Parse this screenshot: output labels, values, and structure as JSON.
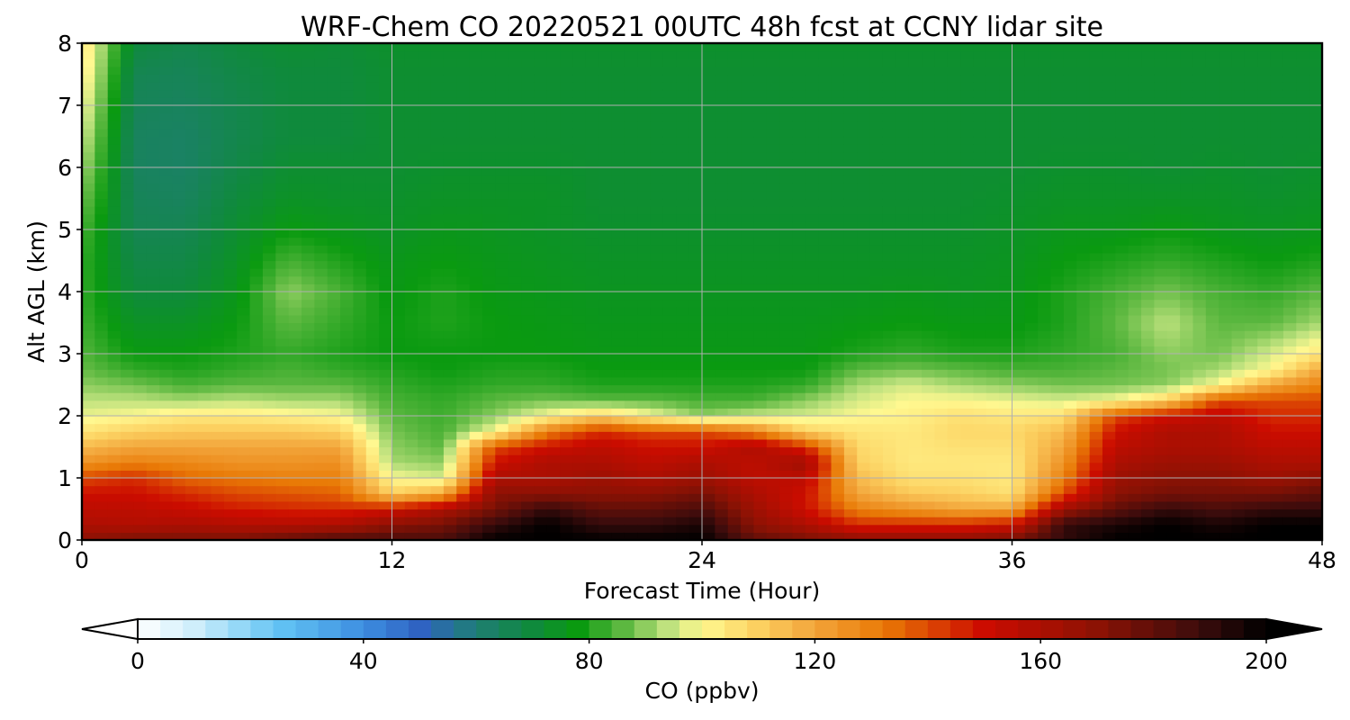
{
  "chart_data": {
    "type": "heatmap",
    "title": "WRF-Chem CO  20220521 00UTC 48h fcst at CCNY lidar site",
    "xlabel": "Forecast Time (Hour)",
    "ylabel": "Alt AGL (km)",
    "xlim": [
      0,
      48
    ],
    "ylim": [
      0,
      8
    ],
    "xticks": [
      0,
      12,
      24,
      36,
      48
    ],
    "yticks": [
      0,
      1,
      2,
      3,
      4,
      5,
      6,
      7,
      8
    ],
    "grid": true,
    "x_hours": [
      0,
      2,
      4,
      6,
      8,
      10,
      12,
      14,
      16,
      18,
      20,
      22,
      24,
      26,
      28,
      30,
      32,
      34,
      36,
      38,
      40,
      42,
      44,
      46,
      48
    ],
    "z_km": [
      0,
      0.25,
      0.5,
      0.75,
      1,
      1.25,
      1.5,
      1.75,
      2,
      2.25,
      2.5,
      2.75,
      3,
      3.5,
      4,
      4.5,
      5,
      5.5,
      6,
      6.5,
      7,
      7.5,
      8
    ],
    "co_ppbv_by_hour": [
      [
        170,
        160,
        155,
        150,
        140,
        125,
        115,
        105,
        98,
        94,
        90,
        87,
        85,
        83,
        82,
        82,
        84,
        88,
        92,
        96,
        100,
        104,
        106
      ],
      [
        175,
        158,
        155,
        150,
        145,
        130,
        120,
        110,
        100,
        94,
        88,
        82,
        78,
        74,
        70,
        68,
        66,
        65,
        64,
        64,
        65,
        66,
        70
      ],
      [
        175,
        160,
        152,
        145,
        135,
        128,
        120,
        112,
        104,
        92,
        84,
        80,
        78,
        74,
        70,
        68,
        66,
        64,
        63,
        63,
        64,
        65,
        67
      ],
      [
        175,
        158,
        148,
        140,
        132,
        125,
        120,
        112,
        104,
        94,
        86,
        82,
        80,
        78,
        76,
        74,
        72,
        70,
        68,
        67,
        67,
        68,
        70
      ],
      [
        180,
        158,
        146,
        138,
        130,
        125,
        120,
        112,
        102,
        92,
        86,
        84,
        82,
        86,
        90,
        84,
        78,
        74,
        72,
        70,
        70,
        70,
        72
      ],
      [
        185,
        160,
        145,
        136,
        130,
        126,
        120,
        110,
        100,
        92,
        86,
        82,
        80,
        82,
        84,
        80,
        76,
        73,
        72,
        70,
        70,
        70,
        71
      ],
      [
        185,
        170,
        150,
        110,
        100,
        92,
        90,
        88,
        86,
        84,
        82,
        80,
        78,
        78,
        77,
        76,
        74,
        73,
        72,
        72,
        72,
        72,
        73
      ],
      [
        185,
        175,
        160,
        120,
        96,
        90,
        86,
        84,
        83,
        82,
        80,
        78,
        78,
        80,
        80,
        78,
        76,
        74,
        73,
        72,
        72,
        72,
        73
      ],
      [
        200,
        190,
        175,
        170,
        160,
        150,
        140,
        100,
        90,
        86,
        82,
        80,
        78,
        78,
        77,
        76,
        75,
        74,
        73,
        72,
        72,
        72,
        73
      ],
      [
        200,
        200,
        190,
        170,
        160,
        160,
        150,
        130,
        100,
        88,
        82,
        80,
        78,
        77,
        76,
        75,
        74,
        74,
        73,
        72,
        72,
        72,
        73
      ],
      [
        200,
        190,
        180,
        170,
        165,
        160,
        155,
        145,
        110,
        86,
        80,
        78,
        77,
        76,
        75,
        74,
        73,
        72,
        72,
        72,
        72,
        72,
        73
      ],
      [
        200,
        190,
        180,
        170,
        160,
        155,
        150,
        140,
        100,
        86,
        80,
        78,
        77,
        76,
        75,
        74,
        73,
        72,
        72,
        72,
        72,
        72,
        73
      ],
      [
        200,
        195,
        185,
        175,
        165,
        160,
        150,
        140,
        90,
        84,
        80,
        78,
        77,
        76,
        75,
        74,
        73,
        72,
        72,
        72,
        72,
        72,
        73
      ],
      [
        180,
        170,
        165,
        160,
        155,
        155,
        160,
        130,
        95,
        84,
        80,
        78,
        77,
        76,
        75,
        74,
        73,
        72,
        72,
        72,
        72,
        72,
        73
      ],
      [
        175,
        160,
        150,
        150,
        155,
        165,
        145,
        110,
        96,
        90,
        82,
        78,
        77,
        76,
        75,
        74,
        73,
        72,
        72,
        72,
        72,
        72,
        73
      ],
      [
        170,
        145,
        130,
        120,
        115,
        110,
        108,
        105,
        100,
        96,
        92,
        86,
        80,
        77,
        75,
        74,
        73,
        72,
        72,
        72,
        72,
        72,
        73
      ],
      [
        170,
        145,
        125,
        112,
        106,
        104,
        104,
        104,
        102,
        100,
        96,
        88,
        82,
        78,
        76,
        74,
        73,
        72,
        72,
        72,
        72,
        72,
        73
      ],
      [
        170,
        145,
        120,
        110,
        106,
        104,
        106,
        108,
        106,
        100,
        92,
        86,
        80,
        77,
        75,
        74,
        73,
        72,
        72,
        72,
        72,
        72,
        73
      ],
      [
        175,
        150,
        120,
        106,
        104,
        104,
        106,
        108,
        104,
        98,
        90,
        84,
        80,
        77,
        76,
        75,
        74,
        73,
        72,
        72,
        72,
        72,
        73
      ],
      [
        190,
        190,
        165,
        140,
        130,
        125,
        120,
        115,
        106,
        96,
        88,
        84,
        82,
        80,
        80,
        78,
        76,
        74,
        73,
        72,
        72,
        72,
        73
      ],
      [
        200,
        195,
        180,
        170,
        165,
        160,
        155,
        150,
        140,
        100,
        88,
        86,
        84,
        86,
        84,
        80,
        76,
        74,
        73,
        72,
        72,
        72,
        73
      ],
      [
        200,
        200,
        190,
        175,
        170,
        165,
        160,
        160,
        150,
        110,
        90,
        88,
        90,
        94,
        88,
        82,
        78,
        74,
        72,
        72,
        72,
        72,
        73
      ],
      [
        200,
        195,
        185,
        175,
        170,
        165,
        160,
        160,
        155,
        140,
        100,
        92,
        88,
        86,
        84,
        80,
        76,
        74,
        73,
        72,
        72,
        72,
        73
      ],
      [
        200,
        200,
        190,
        175,
        165,
        160,
        155,
        150,
        145,
        140,
        120,
        100,
        96,
        86,
        82,
        78,
        75,
        73,
        72,
        72,
        72,
        72,
        73
      ],
      [
        200,
        200,
        190,
        180,
        170,
        160,
        155,
        150,
        145,
        140,
        130,
        120,
        105,
        92,
        86,
        80,
        76,
        74,
        73,
        72,
        72,
        72,
        73
      ]
    ],
    "colorbar": {
      "label": "CO  (ppbv)",
      "ticks": [
        0,
        40,
        80,
        120,
        160,
        200
      ],
      "extend": "both",
      "stops": [
        {
          "v": 0,
          "c": "#ffffff"
        },
        {
          "v": 10,
          "c": "#cfeefb"
        },
        {
          "v": 25,
          "c": "#62c4f4"
        },
        {
          "v": 40,
          "c": "#3d8ee0"
        },
        {
          "v": 50,
          "c": "#2f63c2"
        },
        {
          "v": 60,
          "c": "#1f7e74"
        },
        {
          "v": 70,
          "c": "#0f8a3c"
        },
        {
          "v": 78,
          "c": "#0a9a10"
        },
        {
          "v": 86,
          "c": "#5cb840"
        },
        {
          "v": 94,
          "c": "#bfe27e"
        },
        {
          "v": 100,
          "c": "#fff890"
        },
        {
          "v": 110,
          "c": "#fcd060"
        },
        {
          "v": 120,
          "c": "#f2a43a"
        },
        {
          "v": 132,
          "c": "#e97a06"
        },
        {
          "v": 150,
          "c": "#cc0c00"
        },
        {
          "v": 170,
          "c": "#8c1204"
        },
        {
          "v": 188,
          "c": "#3c0c0c"
        },
        {
          "v": 200,
          "c": "#000000"
        }
      ]
    }
  }
}
